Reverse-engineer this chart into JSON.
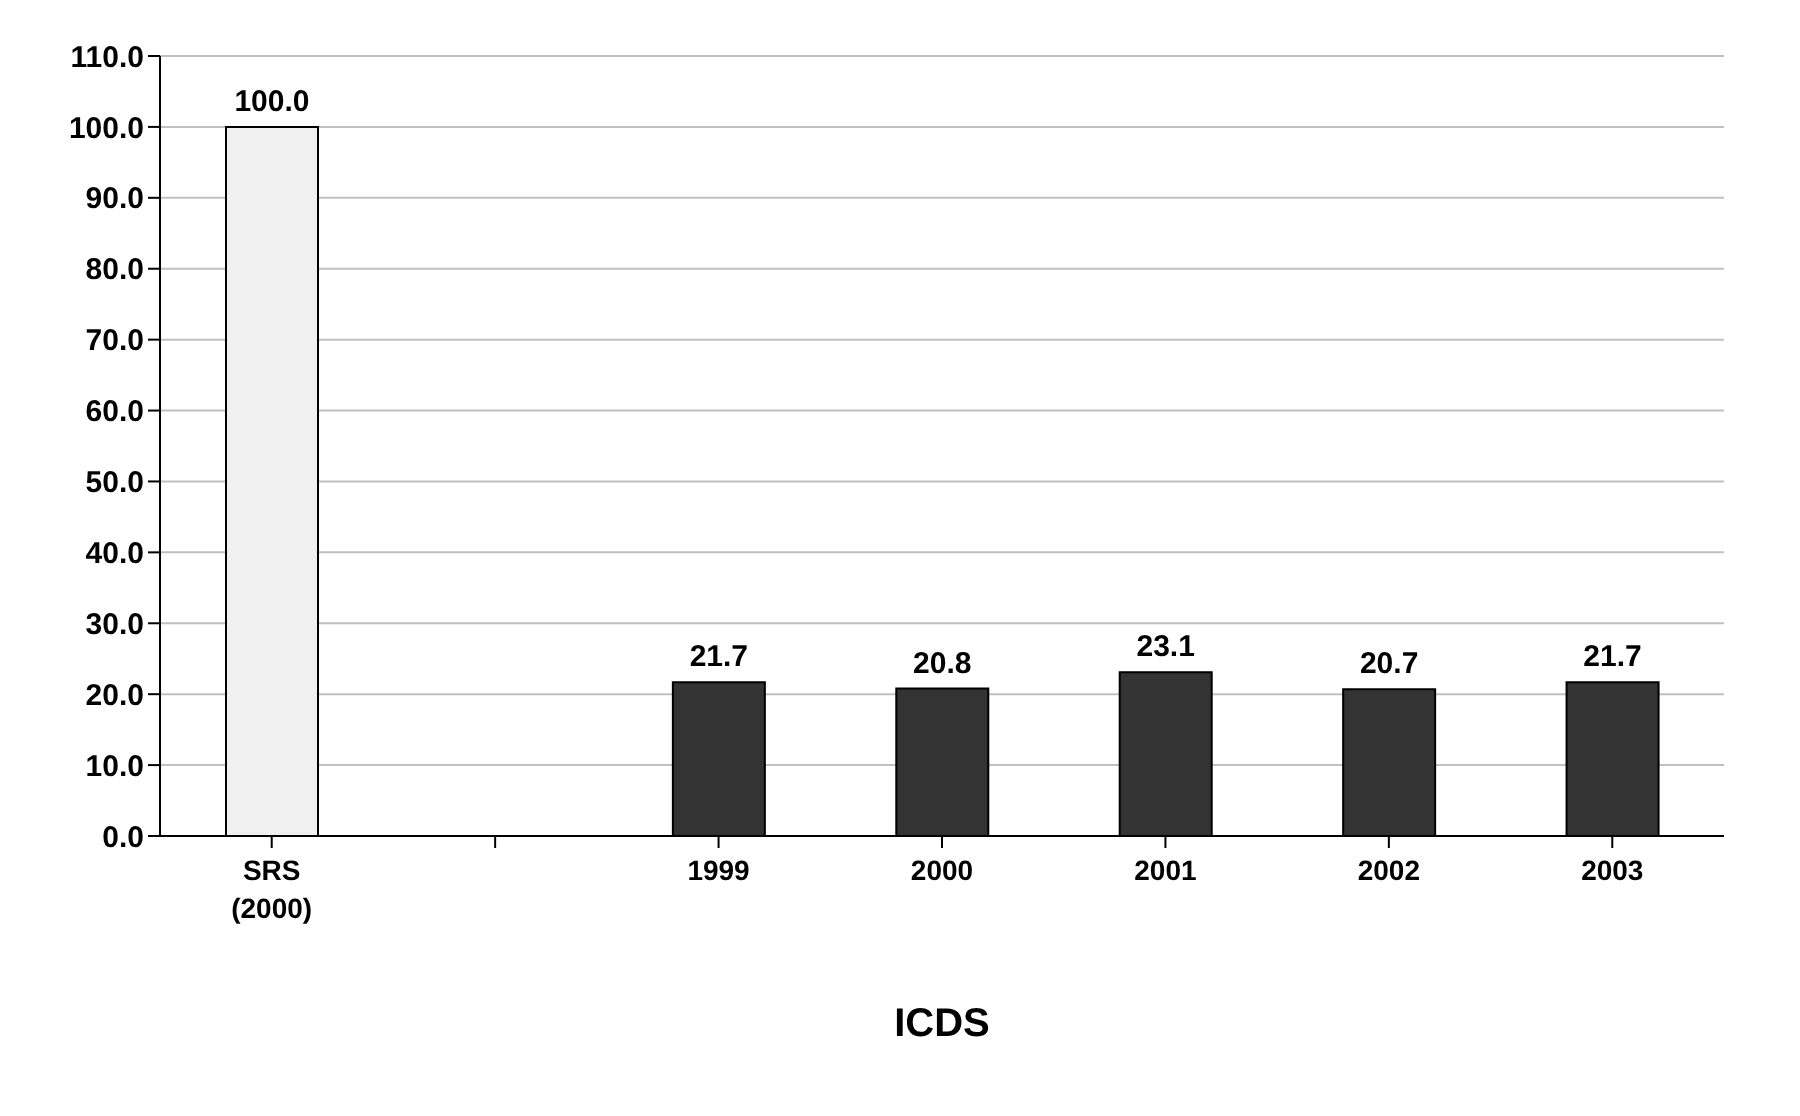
{
  "chart_data": {
    "type": "bar",
    "xlabel": "ICDS",
    "categories": [
      "SRS (2000)",
      null,
      "1999",
      "2000",
      "2001",
      "2002",
      "2003"
    ],
    "values": [
      100.0,
      null,
      21.7,
      20.8,
      23.1,
      20.7,
      21.7
    ],
    "colors": [
      "#f0f0f0",
      "#ffffff",
      "#333333",
      "#333333",
      "#333333",
      "#333333",
      "#333333"
    ],
    "value_labels": [
      "100.0",
      null,
      "21.7",
      "20.8",
      "23.1",
      "20.7",
      "21.7"
    ],
    "ylim": [
      0,
      110
    ],
    "yticks": [
      {
        "value": 0,
        "label": "0.0"
      },
      {
        "value": 10,
        "label": "10.0"
      },
      {
        "value": 20,
        "label": "20.0"
      },
      {
        "value": 30,
        "label": "30.0"
      },
      {
        "value": 40,
        "label": "40.0"
      },
      {
        "value": 50,
        "label": "50.0"
      },
      {
        "value": 60,
        "label": "60.0"
      },
      {
        "value": 70,
        "label": "70.0"
      },
      {
        "value": 80,
        "label": "80.0"
      },
      {
        "value": 90,
        "label": "90.0"
      },
      {
        "value": 100,
        "label": "100.0"
      },
      {
        "value": 110,
        "label": "110.0"
      }
    ],
    "grid": "y"
  }
}
